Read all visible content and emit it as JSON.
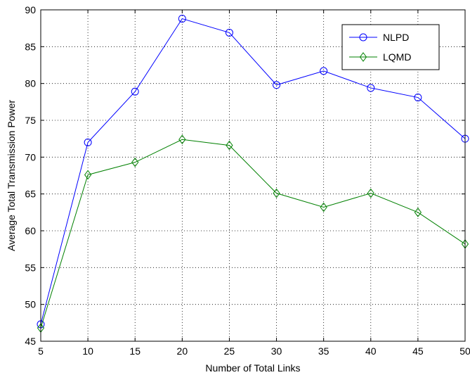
{
  "chart_data": {
    "type": "line",
    "title": "",
    "xlabel": "Number of Total Links",
    "ylabel": "Average Total Transmission Power",
    "x": [
      5,
      10,
      15,
      20,
      25,
      30,
      35,
      40,
      45,
      50
    ],
    "xlim": [
      5,
      50
    ],
    "ylim": [
      45,
      90
    ],
    "xticks": [
      "5",
      "10",
      "15",
      "20",
      "25",
      "30",
      "35",
      "40",
      "45",
      "50"
    ],
    "yticks": [
      "45",
      "50",
      "55",
      "60",
      "65",
      "70",
      "75",
      "80",
      "85",
      "90"
    ],
    "grid": true,
    "legend_position": "top-right",
    "series": [
      {
        "name": "NLPD",
        "color": "#0000ff",
        "marker": "circle",
        "values": [
          47.3,
          72.0,
          78.9,
          88.8,
          86.9,
          79.8,
          81.7,
          79.4,
          78.1,
          72.5
        ]
      },
      {
        "name": "LQMD",
        "color": "#008000",
        "marker": "diamond",
        "values": [
          46.8,
          67.6,
          69.3,
          72.4,
          71.6,
          65.1,
          63.2,
          65.1,
          62.5,
          58.2
        ]
      }
    ]
  }
}
